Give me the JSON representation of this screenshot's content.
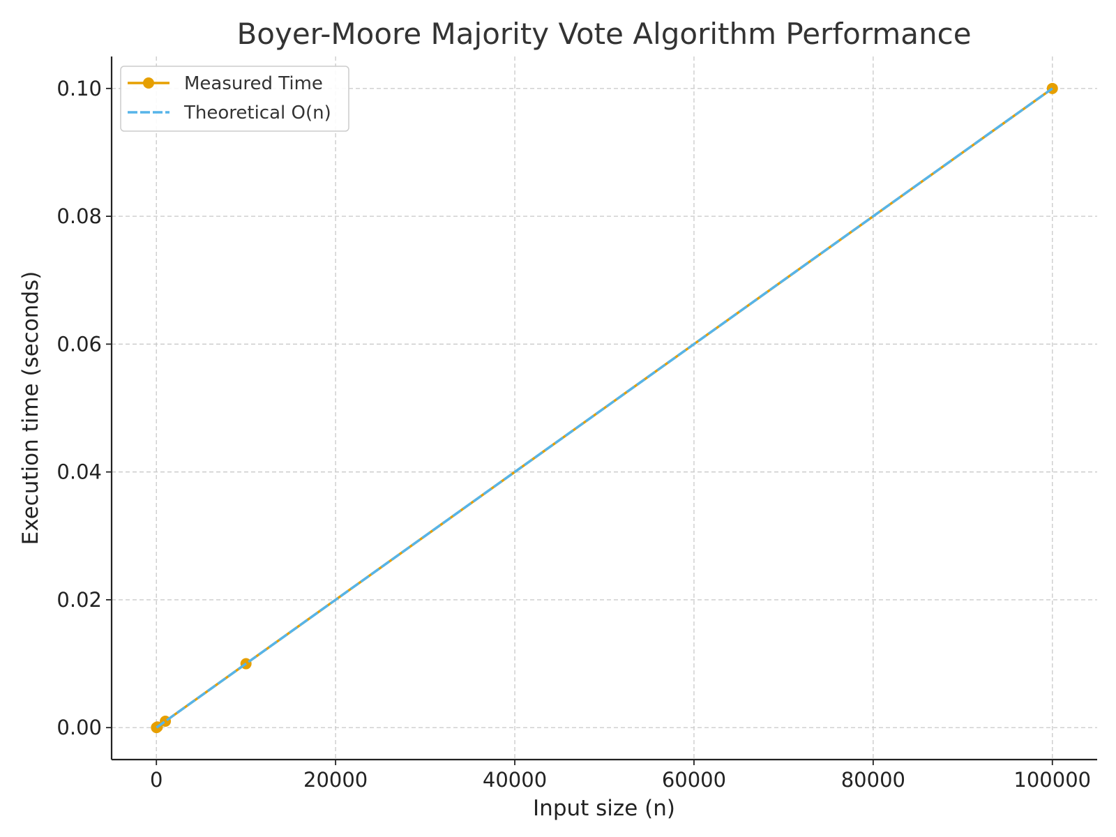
{
  "chart_data": {
    "type": "line",
    "title": "Boyer-Moore Majority Vote Algorithm Performance",
    "xlabel": "Input size (n)",
    "ylabel": "Execution time (seconds)",
    "xlim": [
      -5000,
      105000
    ],
    "ylim": [
      -0.005,
      0.105
    ],
    "x_ticks": [
      0,
      20000,
      40000,
      60000,
      80000,
      100000
    ],
    "x_tick_labels": [
      "0",
      "20000",
      "40000",
      "60000",
      "80000",
      "100000"
    ],
    "y_ticks": [
      0,
      0.02,
      0.04,
      0.06,
      0.08,
      0.1
    ],
    "y_tick_labels": [
      "0.00",
      "0.02",
      "0.04",
      "0.06",
      "0.08",
      "0.10"
    ],
    "grid": true,
    "legend_position": "top-left",
    "series": [
      {
        "name": "Measured Time",
        "style": "solid-with-markers",
        "color": "#E69F00",
        "x": [
          10,
          100,
          1000,
          10000,
          100000
        ],
        "y": [
          1e-05,
          0.0001,
          0.001,
          0.01,
          0.1
        ]
      },
      {
        "name": "Theoretical O(n)",
        "style": "dashed",
        "color": "#56B4E9",
        "x": [
          10,
          100,
          1000,
          10000,
          100000
        ],
        "y": [
          1e-05,
          0.0001,
          0.001,
          0.01,
          0.1
        ]
      }
    ]
  }
}
